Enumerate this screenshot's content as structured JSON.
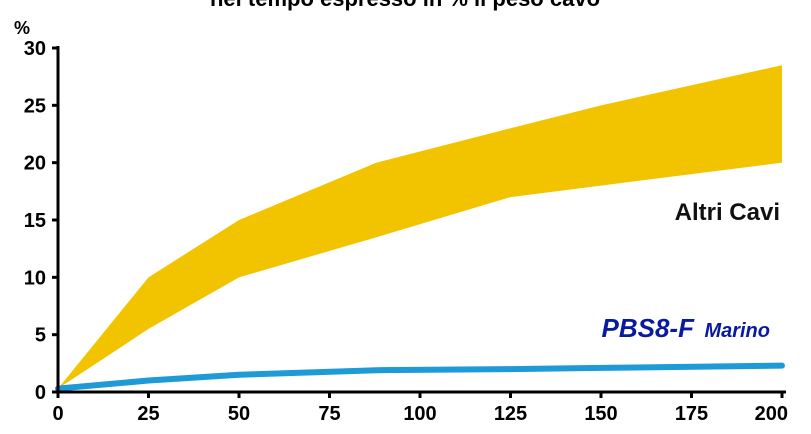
{
  "chart_data": {
    "type": "area",
    "title": "nel tempo espresso in % il peso cavo",
    "ylabel": "%",
    "xlabel": "",
    "xlim": [
      0,
      200
    ],
    "ylim": [
      0,
      30
    ],
    "x_ticks": [
      "0",
      "25",
      "50",
      "75",
      "100",
      "125",
      "150",
      "175",
      "200"
    ],
    "y_ticks": [
      "0",
      "5",
      "10",
      "15",
      "20",
      "25",
      "30"
    ],
    "grid": false,
    "series": [
      {
        "name": "Altri Cavi",
        "kind": "band",
        "color": "#f2c400",
        "x": [
          0,
          25,
          50,
          88,
          125,
          150,
          200
        ],
        "upper": [
          0.3,
          10,
          15,
          20,
          23,
          25,
          28.5
        ],
        "lower": [
          0.3,
          5.5,
          10,
          13.5,
          17,
          18,
          20
        ]
      },
      {
        "name": "PBS8-F Marino",
        "kind": "line",
        "color": "#1e9ad6",
        "x": [
          0,
          25,
          50,
          88,
          125,
          150,
          200
        ],
        "values": [
          0.3,
          1.0,
          1.5,
          1.9,
          2.0,
          2.1,
          2.3
        ]
      }
    ],
    "labels": {
      "altri": "Altri Cavi",
      "pbs_main": "PBS8-F",
      "pbs_sub": "Marino",
      "pbs_color": "#0a1aa0"
    }
  }
}
